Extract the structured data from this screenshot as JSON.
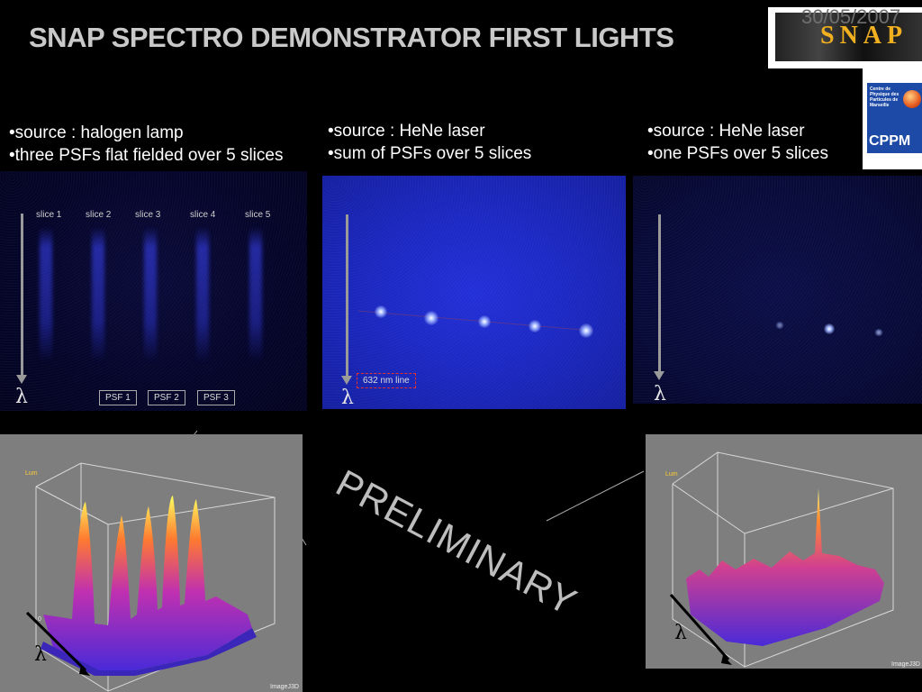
{
  "header": {
    "title": "SNAP SPECTRO DEMONSTRATOR FIRST LIGHTS",
    "date": "30/05/2007"
  },
  "logos": {
    "snap_text": "SNAP",
    "cppm_small": "Centre de Physique des Particules de Marseille",
    "cppm_text": "CPPM"
  },
  "left": {
    "bullets": [
      "•source : halogen lamp",
      "•three PSFs flat fielded over 5 slices"
    ],
    "slices": [
      "slice 1",
      "slice 2",
      "slice 3",
      "slice 4",
      "slice 5"
    ],
    "psfs": [
      "PSF 1",
      "PSF 2",
      "PSF 3"
    ],
    "lambda": "λ"
  },
  "middle": {
    "bullets": [
      "•source : HeNe laser",
      "•sum of PSFs over 5 slices"
    ],
    "line_label": "632 nm line",
    "lambda": "λ"
  },
  "right": {
    "bullets": [
      "•source : HeNe laser",
      "•one PSFs over 5 slices"
    ],
    "lambda": "λ"
  },
  "plots": {
    "lum": "Lum",
    "zero": "0",
    "footer": "ImageJ3D",
    "lambda": "λ"
  },
  "stamp": "PRELIMINARY"
}
